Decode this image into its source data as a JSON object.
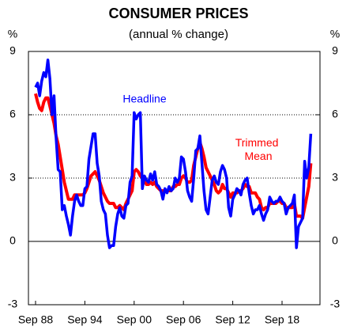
{
  "chart_data": {
    "type": "line",
    "title": "CONSUMER PRICES",
    "subtitle": "(annual % change)",
    "y_label": "%",
    "y2_label": "%",
    "categories": [
      "Sep 88",
      null,
      null,
      null,
      null,
      null,
      null,
      null,
      null,
      null,
      null,
      null,
      null,
      null,
      null,
      null,
      null,
      null,
      null,
      null,
      null,
      null,
      null,
      null,
      "Sep 94",
      null,
      null,
      null,
      null,
      null,
      null,
      null,
      null,
      null,
      null,
      null,
      null,
      null,
      null,
      null,
      null,
      null,
      null,
      null,
      null,
      null,
      null,
      null,
      "Sep 00",
      null,
      null,
      null,
      null,
      null,
      null,
      null,
      null,
      null,
      null,
      null,
      null,
      null,
      null,
      null,
      null,
      null,
      null,
      null,
      null,
      null,
      null,
      null,
      "Sep 06",
      null,
      null,
      null,
      null,
      null,
      null,
      null,
      null,
      null,
      null,
      null,
      null,
      null,
      null,
      null,
      null,
      null,
      null,
      null,
      null,
      null,
      null,
      null,
      "Sep 12",
      null,
      null,
      null,
      null,
      null,
      null,
      null,
      null,
      null,
      null,
      null,
      null,
      null,
      null,
      null,
      null,
      null,
      null,
      null,
      null,
      null,
      null,
      null,
      "Sep 18",
      null,
      null,
      null,
      null,
      null,
      null,
      null,
      null,
      null,
      null,
      null,
      null,
      null,
      null
    ],
    "series": [
      {
        "name": "Trimmed Mean",
        "color": "#ff0000",
        "values": [
          7.0,
          6.6,
          6.3,
          6.2,
          6.6,
          6.8,
          6.8,
          6.4,
          6.0,
          5.6,
          5.0,
          4.6,
          4.0,
          3.4,
          2.8,
          2.4,
          2.0,
          2.0,
          2.0,
          2.2,
          2.2,
          2.2,
          2.2,
          2.2,
          2.3,
          2.5,
          2.8,
          3.1,
          3.2,
          3.3,
          3.1,
          2.9,
          2.6,
          2.3,
          2.1,
          1.9,
          1.8,
          1.8,
          1.8,
          1.6,
          1.6,
          1.7,
          1.6,
          1.5,
          1.8,
          2.0,
          2.2,
          2.4,
          3.3,
          3.4,
          3.3,
          3.1,
          3.0,
          2.9,
          2.7,
          2.7,
          2.8,
          2.7,
          2.8,
          2.6,
          2.5,
          2.4,
          2.4,
          2.4,
          2.4,
          2.4,
          2.4,
          2.6,
          2.6,
          2.7,
          2.7,
          3.0,
          3.1,
          3.0,
          2.8,
          2.8,
          2.9,
          3.6,
          4.0,
          4.4,
          4.7,
          4.4,
          4.0,
          3.5,
          3.3,
          3.1,
          2.9,
          2.7,
          2.4,
          2.3,
          2.4,
          2.7,
          2.5,
          2.5,
          2.3,
          2.1,
          2.3,
          2.3,
          2.3,
          2.4,
          2.4,
          2.5,
          2.7,
          2.6,
          2.6,
          2.3,
          2.3,
          2.3,
          2.1,
          2.0,
          1.6,
          1.5,
          1.6,
          1.6,
          1.8,
          1.8,
          1.8,
          1.8,
          1.9,
          1.9,
          1.8,
          1.8,
          1.6,
          1.6,
          1.6,
          1.6,
          1.8,
          1.2,
          1.2,
          1.2,
          1.1,
          1.6,
          2.1,
          2.6,
          3.7
        ]
      },
      {
        "name": "Headline",
        "color": "#0000ff",
        "values": [
          7.3,
          7.5,
          6.9,
          7.6,
          8.0,
          7.8,
          8.6,
          7.7,
          6.0,
          6.9,
          4.9,
          3.4,
          3.3,
          1.5,
          1.7,
          1.2,
          0.8,
          0.3,
          1.2,
          1.9,
          2.2,
          1.9,
          1.7,
          1.7,
          2.5,
          2.6,
          3.9,
          4.5,
          5.1,
          5.1,
          3.7,
          3.1,
          1.9,
          1.5,
          1.3,
          0.3,
          -0.3,
          -0.2,
          -0.2,
          0.7,
          1.3,
          1.6,
          1.2,
          1.1,
          1.7,
          1.8,
          2.8,
          3.1,
          6.1,
          5.8,
          6.0,
          6.1,
          2.5,
          3.1,
          2.9,
          2.8,
          3.2,
          2.9,
          3.3,
          2.7,
          2.6,
          2.4,
          2.0,
          2.5,
          2.3,
          2.6,
          2.4,
          2.5,
          3.0,
          2.8,
          3.0,
          4.0,
          3.9,
          3.3,
          2.4,
          2.1,
          1.9,
          3.0,
          4.3,
          4.4,
          5.0,
          3.7,
          2.4,
          1.5,
          1.3,
          2.1,
          2.9,
          3.1,
          2.8,
          2.7,
          3.3,
          3.6,
          3.4,
          3.0,
          1.6,
          1.2,
          2.0,
          2.2,
          2.5,
          2.4,
          2.2,
          2.7,
          2.9,
          3.0,
          2.3,
          1.7,
          1.3,
          1.5,
          1.5,
          1.7,
          1.3,
          1.0,
          1.3,
          1.5,
          2.1,
          1.9,
          1.8,
          1.9,
          1.9,
          2.1,
          1.9,
          1.8,
          1.3,
          1.6,
          1.7,
          1.8,
          2.2,
          -0.3,
          0.7,
          0.9,
          1.1,
          3.8,
          3.0,
          3.5,
          5.1
        ]
      }
    ],
    "ylim": [
      -3,
      9
    ],
    "yticks": [
      -3,
      0,
      3,
      6,
      9
    ],
    "y2lim": [
      -3,
      9
    ],
    "y2ticks": [
      -3,
      0,
      3,
      6,
      9
    ],
    "grid": true
  }
}
